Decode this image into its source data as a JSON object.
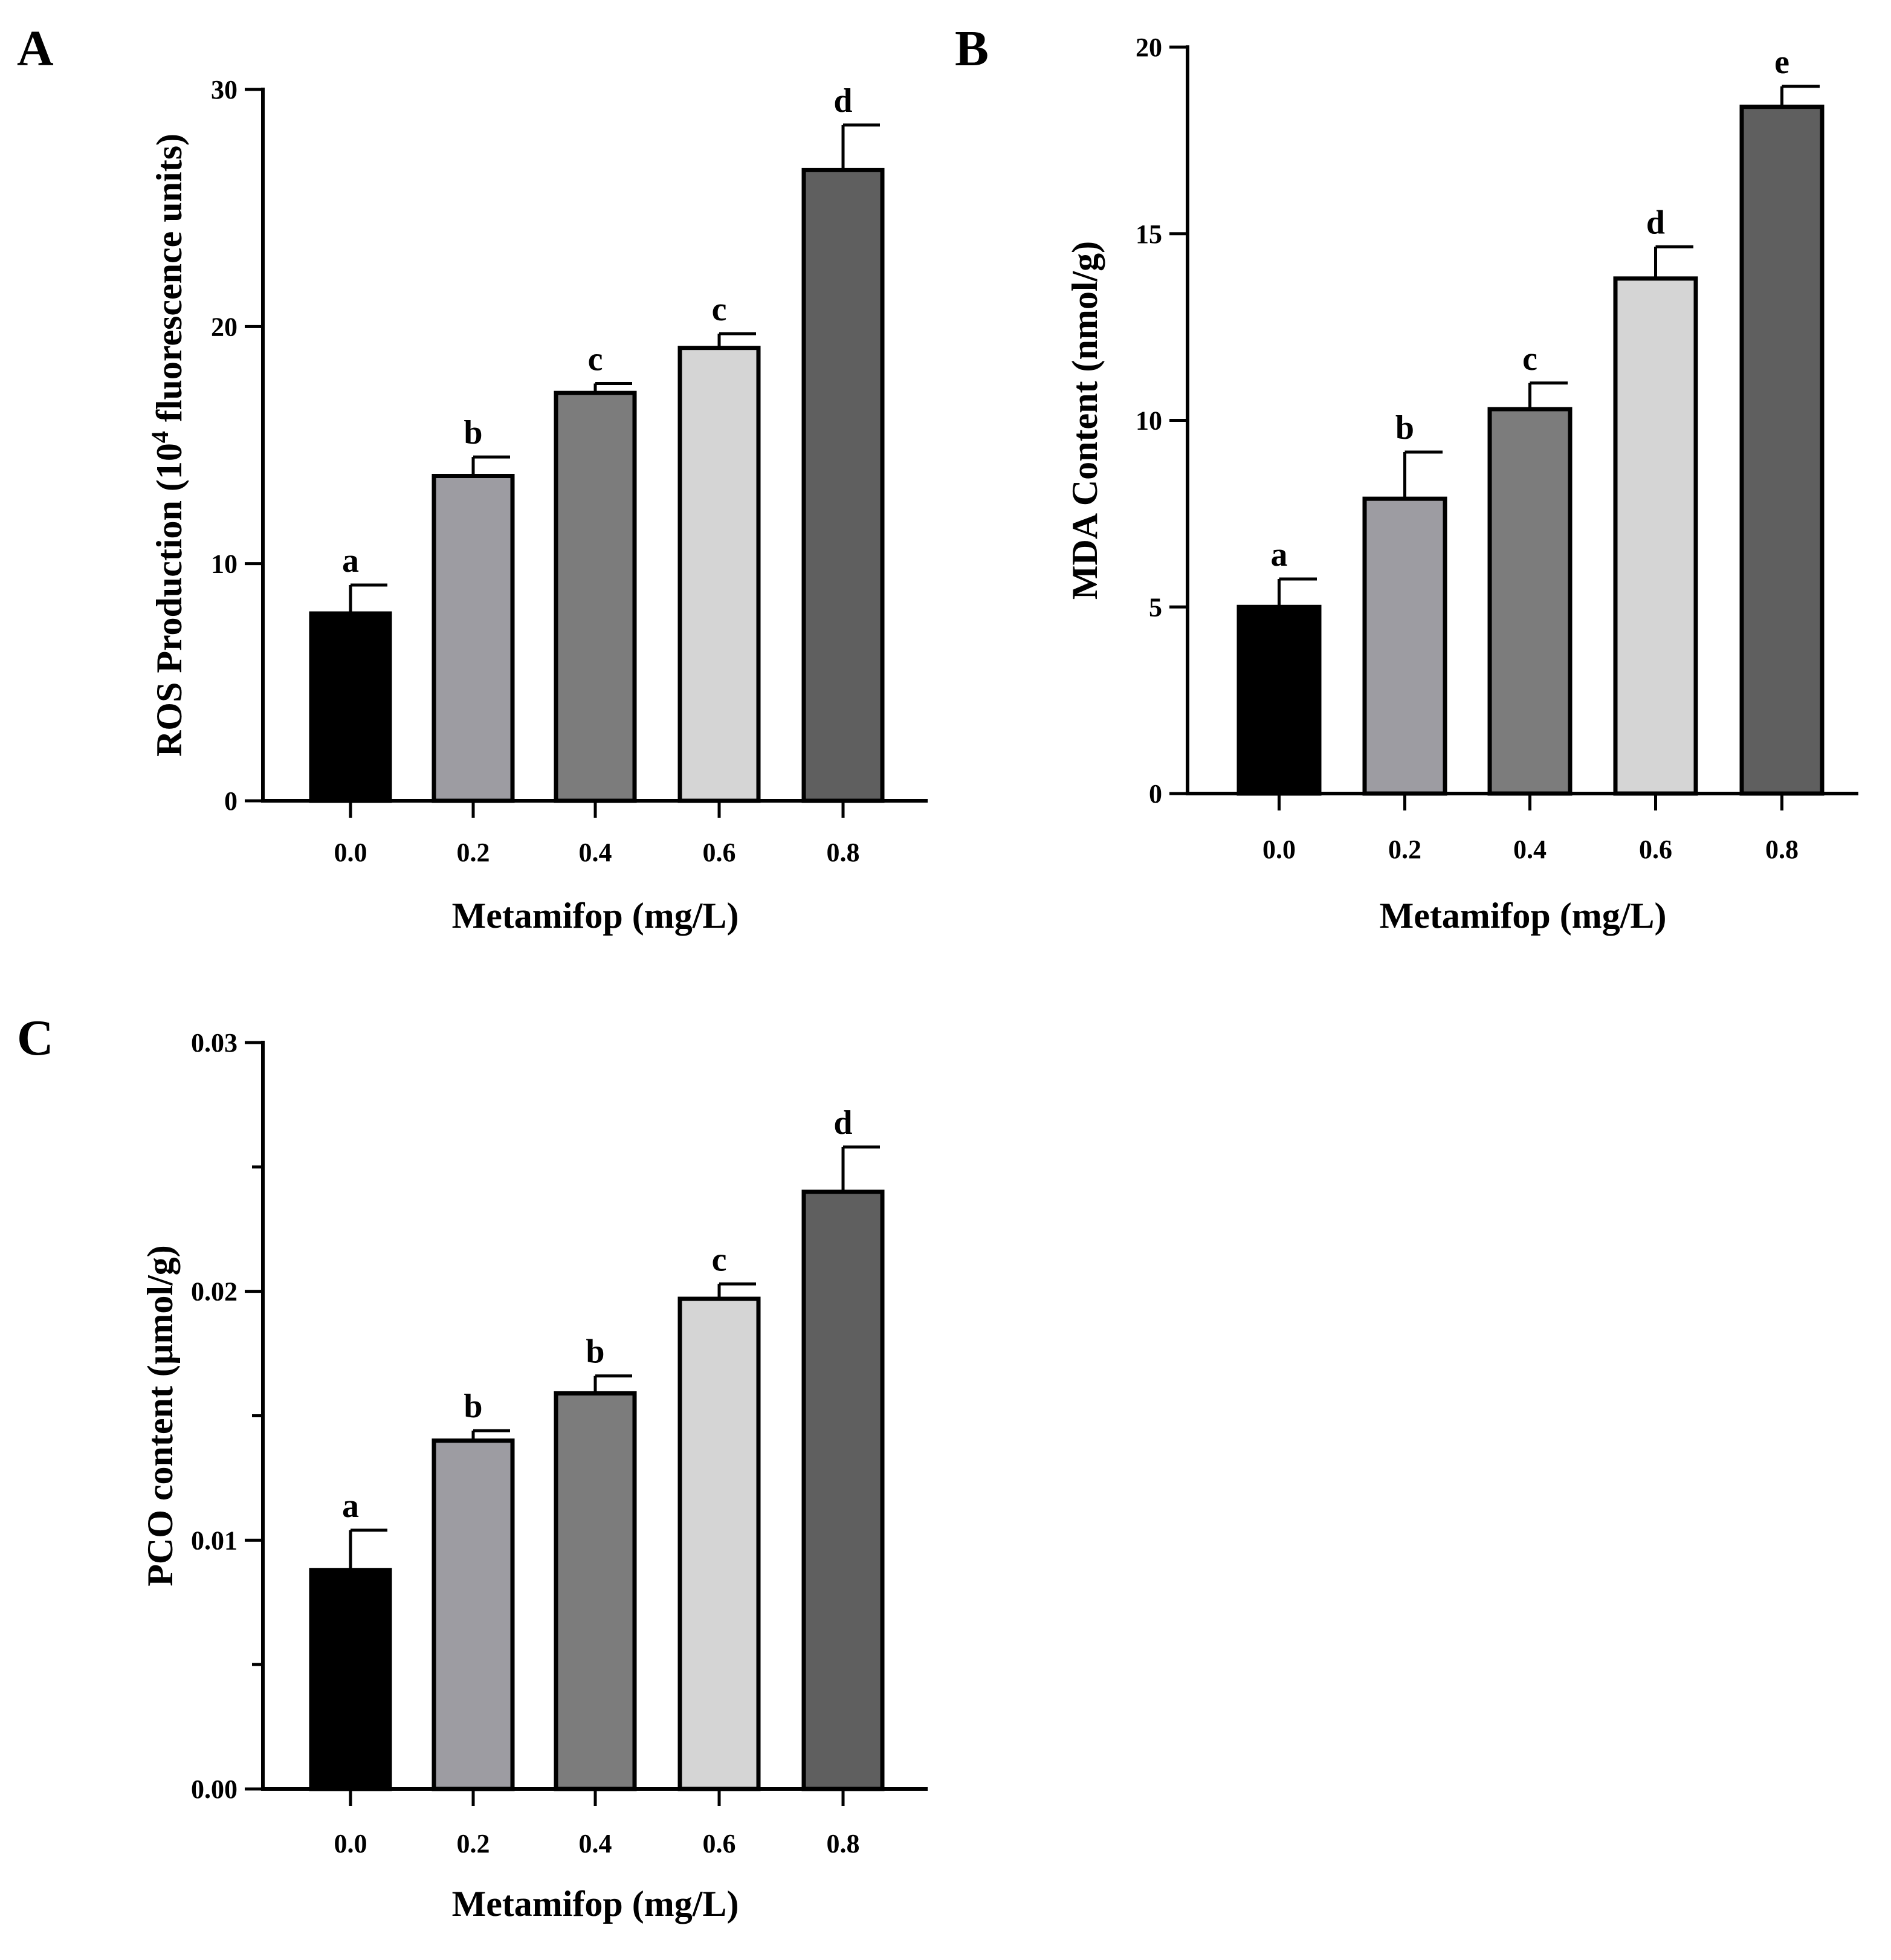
{
  "figure": {
    "panels": [
      "A",
      "B",
      "C"
    ]
  },
  "chart_data": [
    {
      "panel": "A",
      "type": "bar",
      "categories": [
        "0.0",
        "0.2",
        "0.4",
        "0.6",
        "0.8"
      ],
      "values": [
        7.9,
        13.7,
        17.2,
        19.1,
        26.6
      ],
      "errors": [
        1.2,
        0.8,
        0.4,
        0.6,
        1.9
      ],
      "significance": [
        "a",
        "b",
        "c",
        "c",
        "d"
      ],
      "colors": [
        "#000000",
        "#9d9ca2",
        "#7c7c7c",
        "#d5d5d5",
        "#5f5f5f"
      ],
      "xlabel": "Metamifop (mg/L)",
      "ylabel_prefix": "ROS Production (10",
      "ylabel_sup": "4",
      "ylabel_suffix": " fluorescence units)",
      "ylim": [
        0,
        30
      ],
      "yticks": [
        0,
        10,
        20,
        30
      ],
      "ytick_labels": [
        "0",
        "10",
        "20",
        "30"
      ],
      "minor_ticks": []
    },
    {
      "panel": "B",
      "type": "bar",
      "categories": [
        "0.0",
        "0.2",
        "0.4",
        "0.6",
        "0.8"
      ],
      "values": [
        5.0,
        7.9,
        10.3,
        13.8,
        18.4
      ],
      "errors": [
        0.75,
        1.25,
        0.7,
        0.85,
        0.55
      ],
      "significance": [
        "a",
        "b",
        "c",
        "d",
        "e"
      ],
      "colors": [
        "#000000",
        "#9d9ca2",
        "#7c7c7c",
        "#d5d5d5",
        "#5f5f5f"
      ],
      "xlabel": "Metamifop (mg/L)",
      "ylabel": "MDA Content (nmol/g)",
      "ylim": [
        0,
        20
      ],
      "yticks": [
        0,
        5,
        10,
        15,
        20
      ],
      "ytick_labels": [
        "0",
        "5",
        "10",
        "15",
        "20"
      ],
      "minor_ticks": []
    },
    {
      "panel": "C",
      "type": "bar",
      "categories": [
        "0.0",
        "0.2",
        "0.4",
        "0.6",
        "0.8"
      ],
      "values": [
        0.0088,
        0.014,
        0.0159,
        0.0197,
        0.024
      ],
      "errors": [
        0.0016,
        0.0004,
        0.0007,
        0.0006,
        0.0018
      ],
      "significance": [
        "a",
        "b",
        "b",
        "c",
        "d"
      ],
      "colors": [
        "#000000",
        "#9d9ca2",
        "#7c7c7c",
        "#d5d5d5",
        "#5f5f5f"
      ],
      "xlabel": "Metamifop (mg/L)",
      "ylabel": "PCO content (µmol/g)",
      "ylim": [
        0,
        0.03
      ],
      "yticks": [
        0,
        0.01,
        0.02,
        0.03
      ],
      "ytick_labels": [
        "0.00",
        "0.01",
        "0.02",
        "0.03"
      ],
      "minor_ticks": [
        0.005,
        0.015,
        0.025
      ]
    }
  ]
}
